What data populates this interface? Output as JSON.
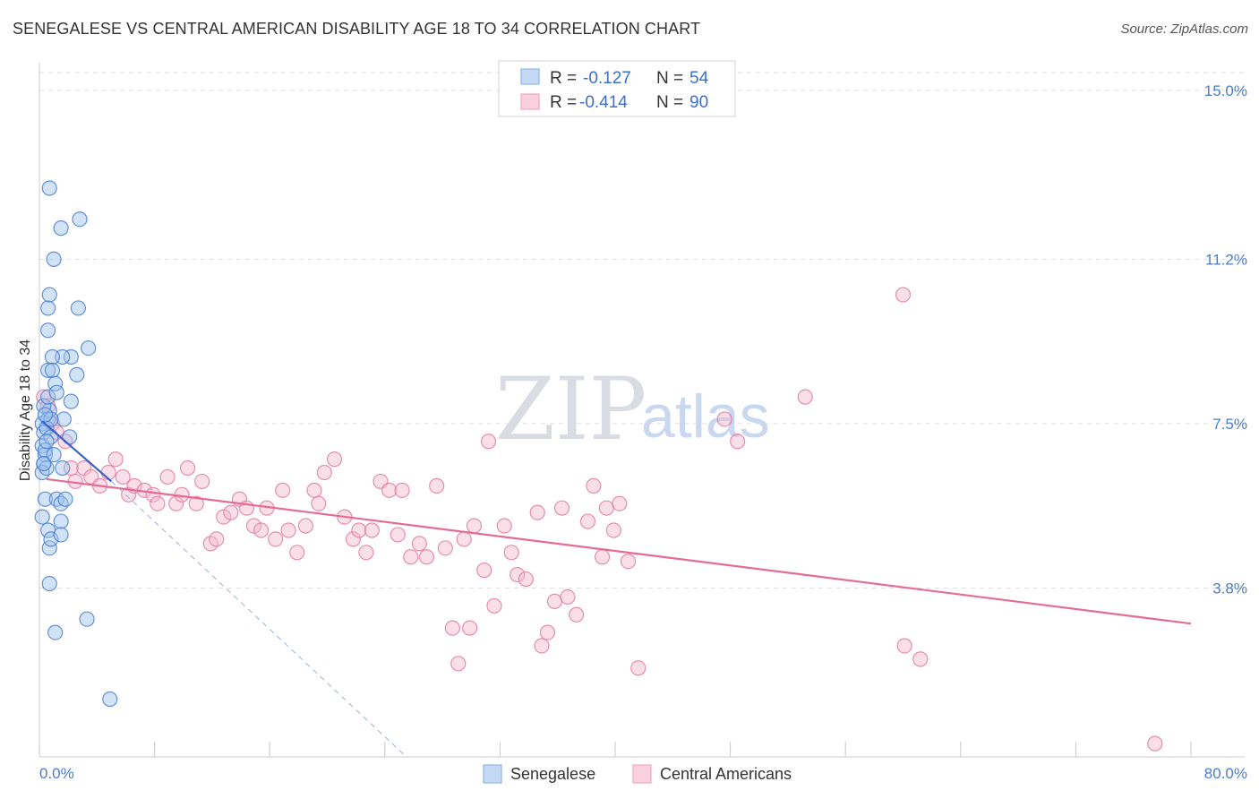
{
  "header": {
    "title": "SENEGALESE VS CENTRAL AMERICAN DISABILITY AGE 18 TO 34 CORRELATION CHART",
    "source": "Source: ZipAtlas.com"
  },
  "watermark": {
    "zip": "ZIP",
    "atlas": "atlas"
  },
  "stats_box": {
    "rows": [
      {
        "r_label": "R =",
        "r_value": "-0.127",
        "n_label": "N =",
        "n_value": "54",
        "color": "#8fb5ea"
      },
      {
        "r_label": "R =",
        "r_value": "-0.414",
        "n_label": "N =",
        "n_value": "90",
        "color": "#f4a6bf"
      }
    ]
  },
  "legend": {
    "items": [
      {
        "label": "Senegalese",
        "color": "#8fb5ea"
      },
      {
        "label": "Central Americans",
        "color": "#f4a6bf"
      }
    ]
  },
  "colors": {
    "senegalese_fill": "#9ec0ee",
    "senegalese_stroke": "#4a80d0",
    "central_fill": "#f6b7cb",
    "central_stroke": "#e17da2",
    "trend_senegalese": "#3a62c8",
    "trend_central": "#e56b97",
    "grid": "#e1e1e1",
    "axis_text": "#4a7cc9"
  },
  "chart_data": {
    "type": "scatter",
    "title": "SENEGALESE VS CENTRAL AMERICAN DISABILITY AGE 18 TO 34 CORRELATION CHART",
    "xlabel": "",
    "ylabel": "Disability Age 18 to 34",
    "xlim": [
      0,
      80
    ],
    "ylim": [
      0,
      15.4
    ],
    "x_tick_labels": [
      "0.0%",
      "80.0%"
    ],
    "x_tick_values": [
      0,
      80
    ],
    "y_tick_labels": [
      "3.8%",
      "7.5%",
      "11.2%",
      "15.0%"
    ],
    "y_tick_values": [
      3.8,
      7.5,
      11.2,
      15.0
    ],
    "grid": true,
    "series": [
      {
        "name": "Senegalese",
        "r": -0.127,
        "n": 54,
        "points": [
          [
            0.2,
            7.5
          ],
          [
            0.3,
            7.3
          ],
          [
            0.2,
            7.0
          ],
          [
            0.4,
            6.8
          ],
          [
            0.3,
            6.6
          ],
          [
            0.2,
            6.4
          ],
          [
            0.5,
            6.5
          ],
          [
            0.4,
            6.9
          ],
          [
            0.6,
            7.6
          ],
          [
            0.5,
            7.4
          ],
          [
            0.7,
            7.8
          ],
          [
            0.8,
            7.2
          ],
          [
            0.3,
            7.9
          ],
          [
            0.6,
            8.1
          ],
          [
            0.4,
            5.8
          ],
          [
            0.2,
            5.4
          ],
          [
            0.6,
            5.1
          ],
          [
            0.7,
            4.7
          ],
          [
            0.8,
            4.9
          ],
          [
            1.2,
            5.8
          ],
          [
            1.5,
            5.7
          ],
          [
            1.8,
            5.8
          ],
          [
            1.5,
            5.3
          ],
          [
            1.5,
            5.0
          ],
          [
            1.6,
            6.5
          ],
          [
            1.7,
            7.6
          ],
          [
            2.1,
            7.2
          ],
          [
            2.2,
            8.0
          ],
          [
            2.6,
            8.6
          ],
          [
            2.2,
            9.0
          ],
          [
            1.6,
            9.0
          ],
          [
            0.9,
            9.0
          ],
          [
            0.6,
            8.7
          ],
          [
            0.9,
            8.7
          ],
          [
            1.1,
            8.4
          ],
          [
            1.2,
            8.2
          ],
          [
            0.6,
            9.6
          ],
          [
            0.6,
            10.1
          ],
          [
            0.7,
            10.4
          ],
          [
            2.7,
            10.1
          ],
          [
            1.0,
            11.2
          ],
          [
            1.5,
            11.9
          ],
          [
            2.8,
            12.1
          ],
          [
            0.7,
            12.8
          ],
          [
            3.4,
            9.2
          ],
          [
            0.7,
            3.9
          ],
          [
            3.3,
            3.1
          ],
          [
            1.1,
            2.8
          ],
          [
            4.9,
            1.3
          ],
          [
            0.8,
            7.6
          ],
          [
            0.3,
            6.6
          ],
          [
            0.5,
            7.1
          ],
          [
            1.0,
            6.8
          ],
          [
            0.4,
            7.7
          ]
        ],
        "trend": {
          "x": [
            0.2,
            5.0
          ],
          "y": [
            7.55,
            6.2
          ]
        },
        "trend_extension": {
          "x": [
            5.0,
            25.5
          ],
          "y": [
            6.2,
            0.0
          ]
        }
      },
      {
        "name": "Central Americans",
        "r": -0.414,
        "n": 90,
        "points": [
          [
            0.3,
            8.1
          ],
          [
            0.6,
            7.9
          ],
          [
            0.9,
            7.5
          ],
          [
            1.2,
            7.3
          ],
          [
            1.8,
            7.1
          ],
          [
            2.2,
            6.5
          ],
          [
            2.5,
            6.2
          ],
          [
            3.1,
            6.5
          ],
          [
            3.6,
            6.3
          ],
          [
            4.2,
            6.1
          ],
          [
            4.8,
            6.4
          ],
          [
            5.3,
            6.7
          ],
          [
            5.8,
            6.3
          ],
          [
            6.2,
            5.9
          ],
          [
            6.6,
            6.1
          ],
          [
            7.3,
            6.0
          ],
          [
            7.9,
            5.9
          ],
          [
            8.2,
            5.7
          ],
          [
            8.9,
            6.3
          ],
          [
            9.5,
            5.7
          ],
          [
            9.9,
            5.9
          ],
          [
            10.3,
            6.5
          ],
          [
            10.9,
            5.7
          ],
          [
            11.3,
            6.2
          ],
          [
            11.9,
            4.8
          ],
          [
            12.3,
            4.9
          ],
          [
            12.8,
            5.4
          ],
          [
            13.3,
            5.5
          ],
          [
            13.9,
            5.8
          ],
          [
            14.4,
            5.6
          ],
          [
            14.9,
            5.2
          ],
          [
            15.4,
            5.1
          ],
          [
            15.8,
            5.6
          ],
          [
            16.4,
            4.9
          ],
          [
            16.9,
            6.0
          ],
          [
            17.3,
            5.1
          ],
          [
            17.9,
            4.6
          ],
          [
            18.5,
            5.2
          ],
          [
            19.1,
            6.0
          ],
          [
            19.4,
            5.7
          ],
          [
            19.8,
            6.4
          ],
          [
            20.5,
            6.7
          ],
          [
            21.2,
            5.4
          ],
          [
            21.8,
            4.9
          ],
          [
            22.2,
            5.1
          ],
          [
            22.7,
            4.6
          ],
          [
            23.1,
            5.1
          ],
          [
            23.7,
            6.2
          ],
          [
            24.3,
            6.0
          ],
          [
            24.9,
            5.0
          ],
          [
            25.2,
            6.0
          ],
          [
            25.8,
            4.5
          ],
          [
            26.4,
            4.8
          ],
          [
            26.9,
            4.5
          ],
          [
            27.6,
            6.1
          ],
          [
            28.2,
            4.7
          ],
          [
            28.7,
            2.9
          ],
          [
            29.1,
            2.1
          ],
          [
            29.5,
            4.9
          ],
          [
            29.9,
            2.9
          ],
          [
            30.2,
            5.2
          ],
          [
            30.9,
            4.2
          ],
          [
            31.2,
            7.1
          ],
          [
            31.6,
            3.4
          ],
          [
            32.3,
            5.2
          ],
          [
            32.8,
            4.6
          ],
          [
            33.2,
            4.1
          ],
          [
            33.8,
            4.0
          ],
          [
            34.6,
            5.5
          ],
          [
            34.9,
            2.5
          ],
          [
            35.3,
            2.8
          ],
          [
            35.8,
            3.5
          ],
          [
            36.3,
            5.6
          ],
          [
            36.7,
            3.6
          ],
          [
            37.3,
            3.2
          ],
          [
            38.1,
            5.3
          ],
          [
            38.5,
            6.1
          ],
          [
            39.1,
            4.5
          ],
          [
            39.4,
            5.6
          ],
          [
            39.9,
            5.1
          ],
          [
            40.3,
            5.7
          ],
          [
            40.9,
            4.4
          ],
          [
            41.6,
            2.0
          ],
          [
            47.6,
            7.6
          ],
          [
            48.5,
            7.1
          ],
          [
            53.2,
            8.1
          ],
          [
            60.1,
            2.5
          ],
          [
            60.0,
            10.4
          ],
          [
            61.2,
            2.2
          ],
          [
            77.5,
            0.3
          ]
        ],
        "trend": {
          "x": [
            0.5,
            80.0
          ],
          "y": [
            6.25,
            3.0
          ]
        }
      }
    ]
  }
}
